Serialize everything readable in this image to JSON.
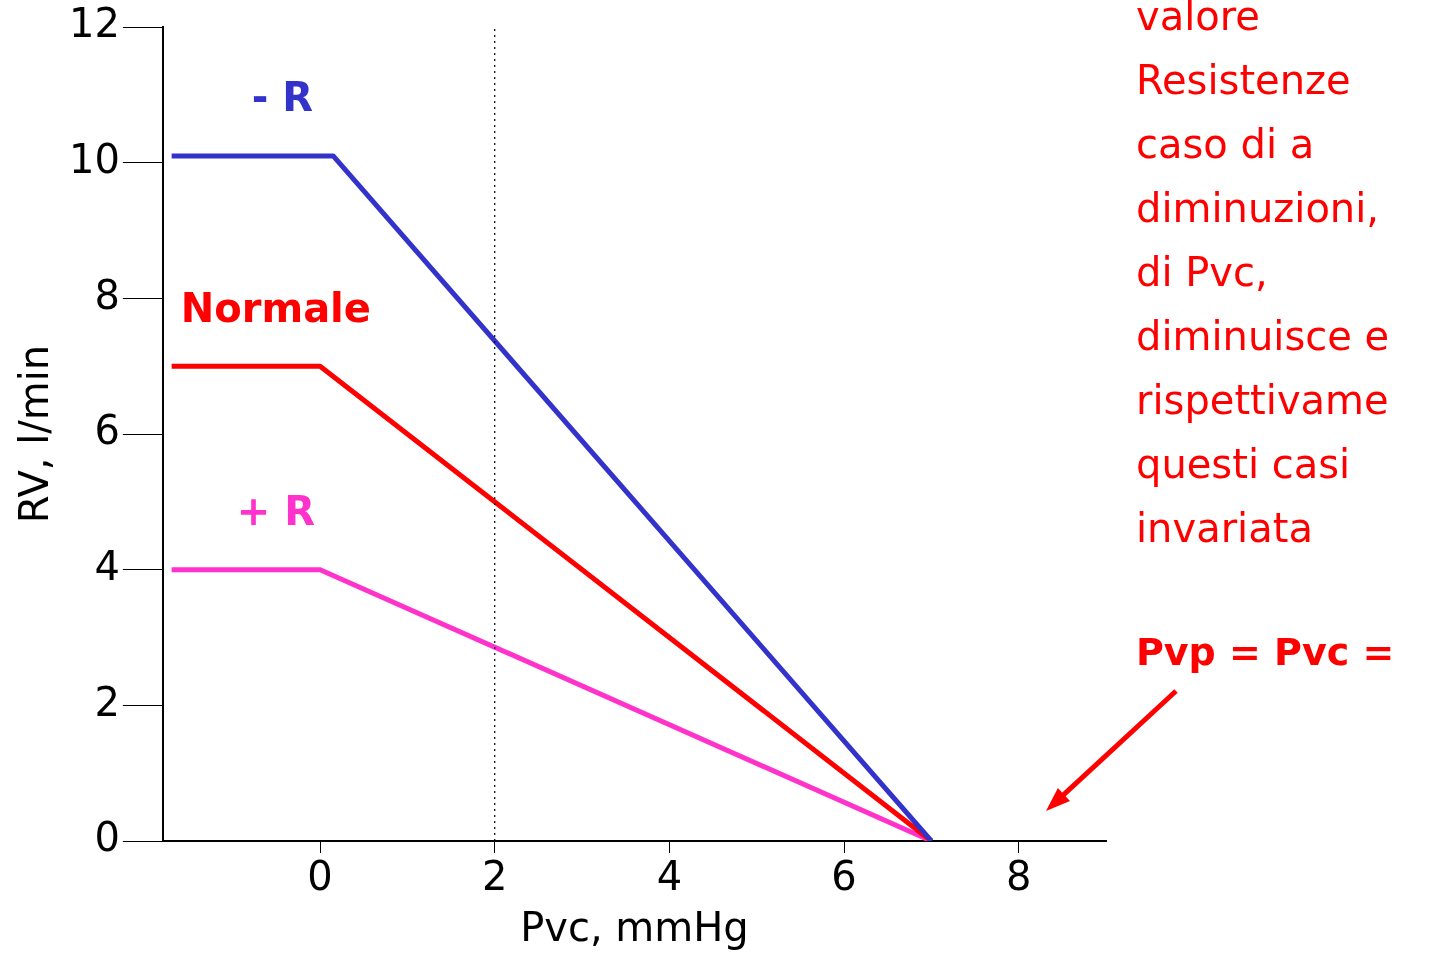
{
  "chart_data": {
    "type": "line",
    "xlabel": "Pvc, mmHg",
    "ylabel": "RV, l/min",
    "xlim": [
      -1.8,
      9
    ],
    "ylim": [
      0,
      12
    ],
    "xticks": [
      0,
      2,
      4,
      6,
      8
    ],
    "yticks": [
      0,
      2,
      4,
      6,
      8,
      10,
      12
    ],
    "grid": false,
    "legend": false,
    "series": [
      {
        "name": "- R",
        "color": "#3333cc",
        "x": [
          -1.7,
          0.15,
          7
        ],
        "values": [
          10.1,
          10.1,
          0
        ]
      },
      {
        "name": "Normale",
        "color": "#ff0000",
        "x": [
          -1.7,
          0,
          7
        ],
        "values": [
          7,
          7,
          0
        ]
      },
      {
        "name": "+ R",
        "color": "#ff33cc",
        "x": [
          -1.7,
          0,
          7
        ],
        "values": [
          4,
          4,
          0
        ]
      }
    ],
    "ref_lines": [
      {
        "axis": "x",
        "value": 2,
        "line_style": "dotted",
        "color": "#000000"
      }
    ],
    "annotations": [
      "valore",
      "Resistenze",
      "caso di a",
      "diminuzioni,",
      "di Pvc,",
      "diminuisce e",
      "rispettivame",
      "questi casi",
      "invariata",
      "Pvp = Pvc ="
    ]
  }
}
